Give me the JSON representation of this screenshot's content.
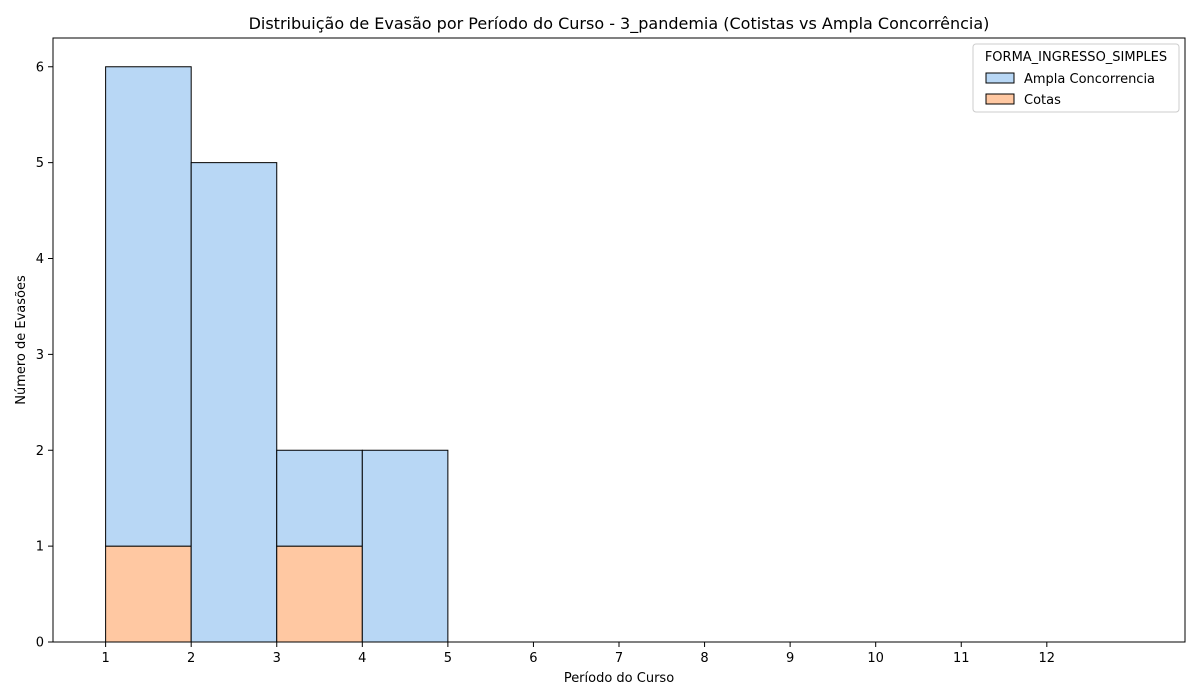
{
  "chart_data": {
    "type": "bar",
    "stacked": true,
    "title": "Distribuição de Evasão por Período do Curso - 3_pandemia (Cotistas vs Ampla Concorrência)",
    "xlabel": "Período do Curso",
    "ylabel": "Número de Evasões",
    "xlim": [
      0.385,
      13.615
    ],
    "ylim": [
      0,
      6.3
    ],
    "xticks": [
      1,
      2,
      3,
      4,
      5,
      6,
      7,
      8,
      9,
      10,
      11,
      12
    ],
    "yticks": [
      0,
      1,
      2,
      3,
      4,
      5,
      6
    ],
    "bin_edges": [
      1,
      2,
      3,
      4,
      5,
      6,
      7,
      8,
      9,
      10,
      11,
      12,
      13
    ],
    "legend": {
      "title": "FORMA_INGRESSO_SIMPLES",
      "placement": "top-right"
    },
    "series": [
      {
        "name": "Cotas",
        "color": "#ffc8a2",
        "values": [
          1,
          0,
          1,
          0,
          0,
          0,
          0,
          0,
          0,
          0,
          0,
          0
        ]
      },
      {
        "name": "Ampla Concorrencia",
        "color": "#b8d7f5",
        "values": [
          5,
          5,
          1,
          2,
          0,
          0,
          0,
          0,
          0,
          0,
          0,
          0
        ]
      }
    ],
    "legend_order": [
      "Ampla Concorrencia",
      "Cotas"
    ],
    "grid": false
  }
}
